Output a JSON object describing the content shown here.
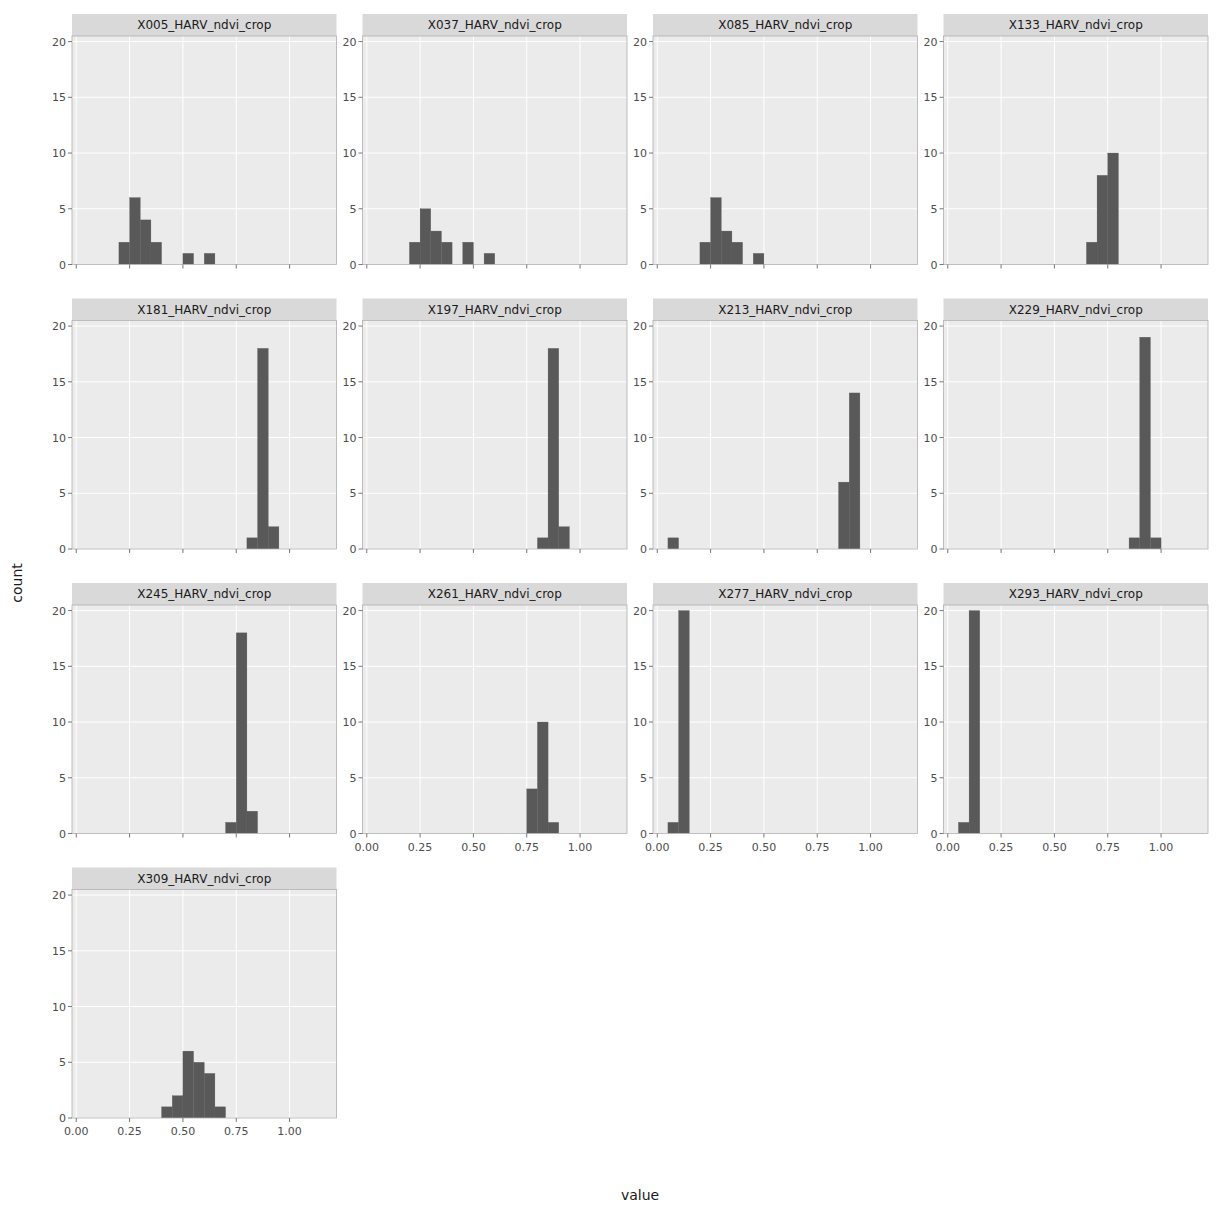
{
  "chart_data": {
    "type": "histogram",
    "xlabel": "value",
    "ylabel": "count",
    "color": "#595959",
    "grid": true,
    "bins": [
      0.0,
      0.05,
      0.1,
      0.15,
      0.2,
      0.25,
      0.3,
      0.35,
      0.4,
      0.45,
      0.5,
      0.55,
      0.6,
      0.65,
      0.7,
      0.75,
      0.8,
      0.85,
      0.9,
      0.95,
      1.0
    ],
    "xlim": [
      -0.02,
      1.22
    ],
    "xticks": [
      {
        "value": 0.0,
        "label": "0.00"
      },
      {
        "value": 0.25,
        "label": "0.25"
      },
      {
        "value": 0.5,
        "label": "0.50"
      },
      {
        "value": 0.75,
        "label": "0.75"
      },
      {
        "value": 1.0,
        "label": "1.00"
      }
    ],
    "ylim": [
      0,
      20.5
    ],
    "yticks": [
      0,
      5,
      10,
      15,
      20
    ],
    "series": [
      {
        "name": "X005_HARV_ndvi_crop",
        "values": [
          0,
          0,
          0,
          0,
          2,
          6,
          4,
          2,
          0,
          0,
          1,
          0,
          1,
          0,
          0,
          0,
          0,
          0,
          0,
          0
        ]
      },
      {
        "name": "X037_HARV_ndvi_crop",
        "values": [
          0,
          0,
          0,
          0,
          2,
          5,
          3,
          2,
          0,
          2,
          0,
          1,
          0,
          0,
          0,
          0,
          0,
          0,
          0,
          0
        ]
      },
      {
        "name": "X085_HARV_ndvi_crop",
        "values": [
          0,
          0,
          0,
          0,
          2,
          6,
          3,
          2,
          0,
          1,
          0,
          0,
          0,
          0,
          0,
          0,
          0,
          0,
          0,
          0
        ]
      },
      {
        "name": "X133_HARV_ndvi_crop",
        "values": [
          0,
          0,
          0,
          0,
          0,
          0,
          0,
          0,
          0,
          0,
          0,
          0,
          0,
          2,
          8,
          10,
          0,
          0,
          0,
          0
        ]
      },
      {
        "name": "X181_HARV_ndvi_crop",
        "values": [
          0,
          0,
          0,
          0,
          0,
          0,
          0,
          0,
          0,
          0,
          0,
          0,
          0,
          0,
          0,
          0,
          1,
          18,
          2,
          0
        ]
      },
      {
        "name": "X197_HARV_ndvi_crop",
        "values": [
          0,
          0,
          0,
          0,
          0,
          0,
          0,
          0,
          0,
          0,
          0,
          0,
          0,
          0,
          0,
          0,
          1,
          18,
          2,
          0
        ]
      },
      {
        "name": "X213_HARV_ndvi_crop",
        "values": [
          0,
          1,
          0,
          0,
          0,
          0,
          0,
          0,
          0,
          0,
          0,
          0,
          0,
          0,
          0,
          0,
          0,
          6,
          14,
          0
        ]
      },
      {
        "name": "X229_HARV_ndvi_crop",
        "values": [
          0,
          0,
          0,
          0,
          0,
          0,
          0,
          0,
          0,
          0,
          0,
          0,
          0,
          0,
          0,
          0,
          0,
          1,
          19,
          1
        ]
      },
      {
        "name": "X245_HARV_ndvi_crop",
        "values": [
          0,
          0,
          0,
          0,
          0,
          0,
          0,
          0,
          0,
          0,
          0,
          0,
          0,
          0,
          1,
          18,
          2,
          0,
          0,
          0
        ]
      },
      {
        "name": "X261_HARV_ndvi_crop",
        "values": [
          0,
          0,
          0,
          0,
          0,
          0,
          0,
          0,
          0,
          0,
          0,
          0,
          0,
          0,
          0,
          4,
          10,
          1,
          0,
          0
        ]
      },
      {
        "name": "X277_HARV_ndvi_crop",
        "values": [
          0,
          1,
          20,
          0,
          0,
          0,
          0,
          0,
          0,
          0,
          0,
          0,
          0,
          0,
          0,
          0,
          0,
          0,
          0,
          0
        ]
      },
      {
        "name": "X293_HARV_ndvi_crop",
        "values": [
          0,
          1,
          20,
          0,
          0,
          0,
          0,
          0,
          0,
          0,
          0,
          0,
          0,
          0,
          0,
          0,
          0,
          0,
          0,
          0
        ]
      },
      {
        "name": "X309_HARV_ndvi_crop",
        "values": [
          0,
          0,
          0,
          0,
          0,
          0,
          0,
          0,
          1,
          2,
          6,
          5,
          4,
          1,
          0,
          0,
          0,
          0,
          0,
          0
        ]
      }
    ]
  }
}
